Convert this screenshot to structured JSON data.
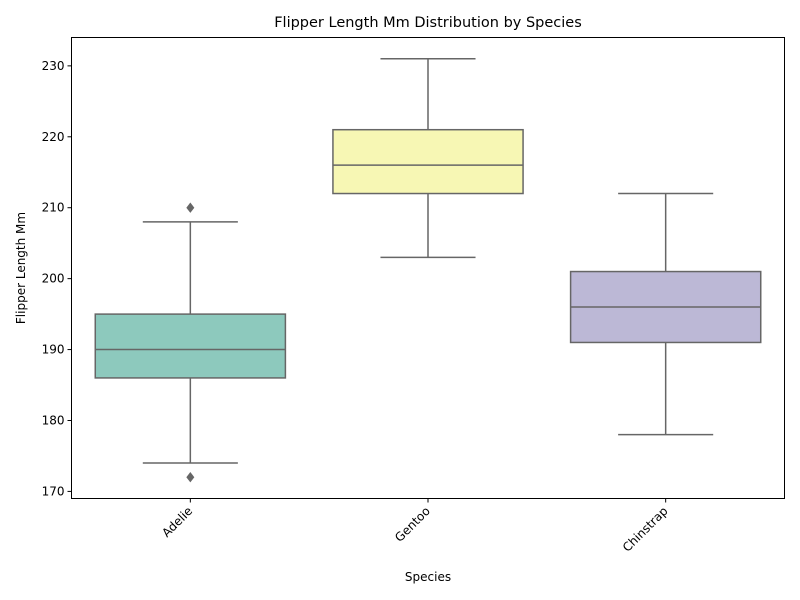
{
  "chart_data": {
    "type": "box",
    "title": "Flipper Length Mm Distribution by Species",
    "xlabel": "Species",
    "ylabel": "Flipper Length Mm",
    "ylim": [
      169,
      234
    ],
    "yticks": [
      170,
      180,
      190,
      200,
      210,
      220,
      230
    ],
    "grid": false,
    "categories": [
      "Adelie",
      "Gentoo",
      "Chinstrap"
    ],
    "boxes": [
      {
        "category": "Adelie",
        "whisker_low": 174,
        "q1": 186,
        "median": 190,
        "q3": 195,
        "whisker_high": 208,
        "outliers": [
          172,
          210
        ],
        "color": "#8dc9bd"
      },
      {
        "category": "Gentoo",
        "whisker_low": 203,
        "q1": 212,
        "median": 216,
        "q3": 221,
        "whisker_high": 231,
        "outliers": [],
        "color": "#f7f7b4"
      },
      {
        "category": "Chinstrap",
        "whisker_low": 178,
        "q1": 191,
        "median": 196,
        "q3": 201,
        "whisker_high": 212,
        "outliers": [],
        "color": "#bcb8d6"
      }
    ],
    "line_color": "#666666"
  }
}
